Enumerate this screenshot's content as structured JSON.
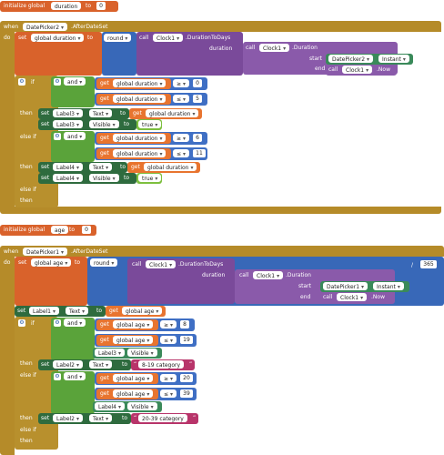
{
  "group1": {
    "init": {
      "label": "initialize global",
      "var": "duration",
      "to": "to",
      "value": "0"
    },
    "event": {
      "when": "when",
      "component": "DatePicker2",
      "event": ".AfterDateSet",
      "do": "do"
    },
    "set_dur": {
      "set": "set",
      "var": "global duration",
      "to": "to",
      "round": "round"
    },
    "clock": {
      "call": "call",
      "comp": "Clock1",
      "method": ".DurationToDays",
      "duration": "duration",
      "call2": "call",
      "comp2": "Clock1",
      "method2": ".Duration",
      "start": "start",
      "dp": "DatePicker2",
      "instant": "Instant",
      "end": "end",
      "call3": "call",
      "comp3": "Clock1",
      "now": ".Now"
    },
    "if": {
      "if": "if",
      "and": "and",
      "get": "get",
      "var": "global duration",
      "op1": "≥",
      "v1": "0",
      "op2": "≤",
      "v2": "5"
    },
    "then1": {
      "then": "then",
      "set": "set",
      "label": "Label3",
      "prop": "Text",
      "to": "to",
      "get": "get",
      "var": "global duration",
      "label2": "Label3",
      "prop2": "Visible",
      "val": "true"
    },
    "elif": {
      "label": "else if",
      "and": "and",
      "get": "get",
      "var": "global duration",
      "op1": "≥",
      "v1": "6",
      "op2": "≤",
      "v2": "11"
    },
    "then2": {
      "then": "then",
      "set": "set",
      "label": "Label4",
      "prop": "Text",
      "to": "to",
      "get": "get",
      "var": "global duration",
      "label2": "Label4",
      "prop2": "Visible",
      "val": "true"
    },
    "elif2": "else if",
    "then3": "then"
  },
  "group2": {
    "init": {
      "label": "initialize global",
      "var": "age",
      "to": "to",
      "value": "0"
    },
    "event": {
      "when": "when",
      "component": "DatePicker1",
      "event": ".AfterDateSet",
      "do": "do"
    },
    "set_age": {
      "set": "set",
      "var": "global age",
      "to": "to",
      "round": "round",
      "div": "/",
      "divisor": "365"
    },
    "clock": {
      "call": "call",
      "comp": "Clock1",
      "method": ".DurationToDays",
      "duration": "duration",
      "call2": "call",
      "comp2": "Clock1",
      "method2": ".Duration",
      "start": "start",
      "dp": "DatePicker1",
      "instant": "Instant",
      "end": "end",
      "call3": "call",
      "comp3": "Clock1",
      "now": ".Now"
    },
    "set_label1": {
      "set": "set",
      "label": "Label1",
      "prop": "Text",
      "to": "to",
      "get": "get",
      "var": "global age"
    },
    "if": {
      "if": "if",
      "and": "and",
      "get": "get",
      "var": "global age",
      "op1": "≥",
      "v1": "8",
      "op2": "≤",
      "v2": "19",
      "label": "Label3",
      "prop": "Visible"
    },
    "then1": {
      "then": "then",
      "set": "set",
      "label": "Label2",
      "prop": "Text",
      "to": "to",
      "str": "8-19 category"
    },
    "elif": {
      "label": "else if",
      "and": "and",
      "get": "get",
      "var": "global age",
      "op1": "≥",
      "v1": "20",
      "op2": "≤",
      "v2": "39",
      "label2": "Label4",
      "prop2": "Visible"
    },
    "then2": {
      "then": "then",
      "set": "set",
      "label": "Label2",
      "prop": "Text",
      "to": "to",
      "str": "20-39 category"
    },
    "elif2": "else if",
    "then3": "then"
  }
}
